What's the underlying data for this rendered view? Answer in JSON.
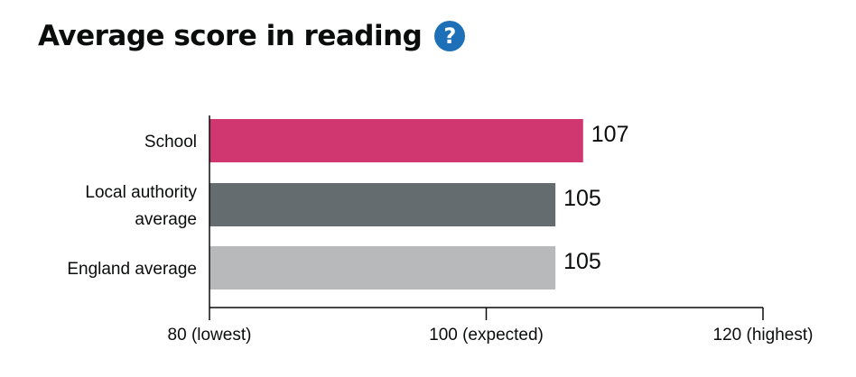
{
  "header": {
    "title": "Average score in reading",
    "help_icon": "question-mark-icon",
    "help_glyph": "?"
  },
  "chart_data": {
    "type": "bar",
    "orientation": "horizontal",
    "categories": [
      [
        "School"
      ],
      [
        "Local authority",
        "average"
      ],
      [
        "England average"
      ]
    ],
    "values": [
      107,
      105,
      105
    ],
    "value_labels": [
      "107",
      "105",
      "105"
    ],
    "colors": [
      "#d03670",
      "#656c6f",
      "#b8b9ba"
    ],
    "xlim": [
      80,
      120
    ],
    "ticks": [
      {
        "value": 80,
        "label": "80 (lowest)"
      },
      {
        "value": 100,
        "label": "100 (expected)"
      },
      {
        "value": 120,
        "label": "120 (highest)"
      }
    ],
    "grid": false
  }
}
